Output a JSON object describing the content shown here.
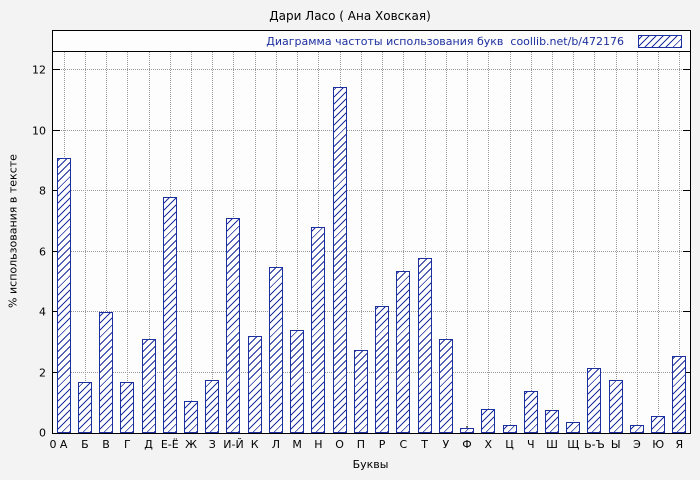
{
  "page": {
    "background": "#f3f3f3"
  },
  "chart_data": {
    "type": "bar",
    "title": "Дари Ласо ( Ана Ховская)",
    "legend_label": "Диаграмма частоты использования букв  coollib.net/b/472176",
    "xlabel": "Буквы",
    "ylabel": "% использования в тексте",
    "origin_label": "0",
    "categories": [
      "А",
      "Б",
      "В",
      "Г",
      "Д",
      "Е-Ё",
      "Ж",
      "З",
      "И-Й",
      "К",
      "Л",
      "М",
      "Н",
      "О",
      "П",
      "Р",
      "С",
      "Т",
      "У",
      "Ф",
      "Х",
      "Ц",
      "Ч",
      "Ш",
      "Щ",
      "Ь-Ъ",
      "Ы",
      "Э",
      "Ю",
      "Я"
    ],
    "values": [
      9.1,
      1.7,
      4.0,
      1.7,
      3.1,
      7.8,
      1.05,
      1.75,
      7.1,
      3.2,
      5.5,
      3.4,
      6.8,
      11.45,
      2.75,
      4.2,
      5.35,
      5.8,
      3.1,
      0.15,
      0.8,
      0.25,
      1.4,
      0.75,
      0.35,
      2.15,
      1.75,
      0.25,
      0.55,
      2.55
    ],
    "yticks": [
      0,
      2,
      4,
      6,
      8,
      10,
      12
    ],
    "ylim": [
      0,
      13.3
    ],
    "grid": true,
    "legend_position": "top",
    "colors": {
      "bar_hatch": "#1c2f9e",
      "plot_border": "#000000",
      "grid": "#9a9a9a",
      "text": "#000000"
    }
  }
}
